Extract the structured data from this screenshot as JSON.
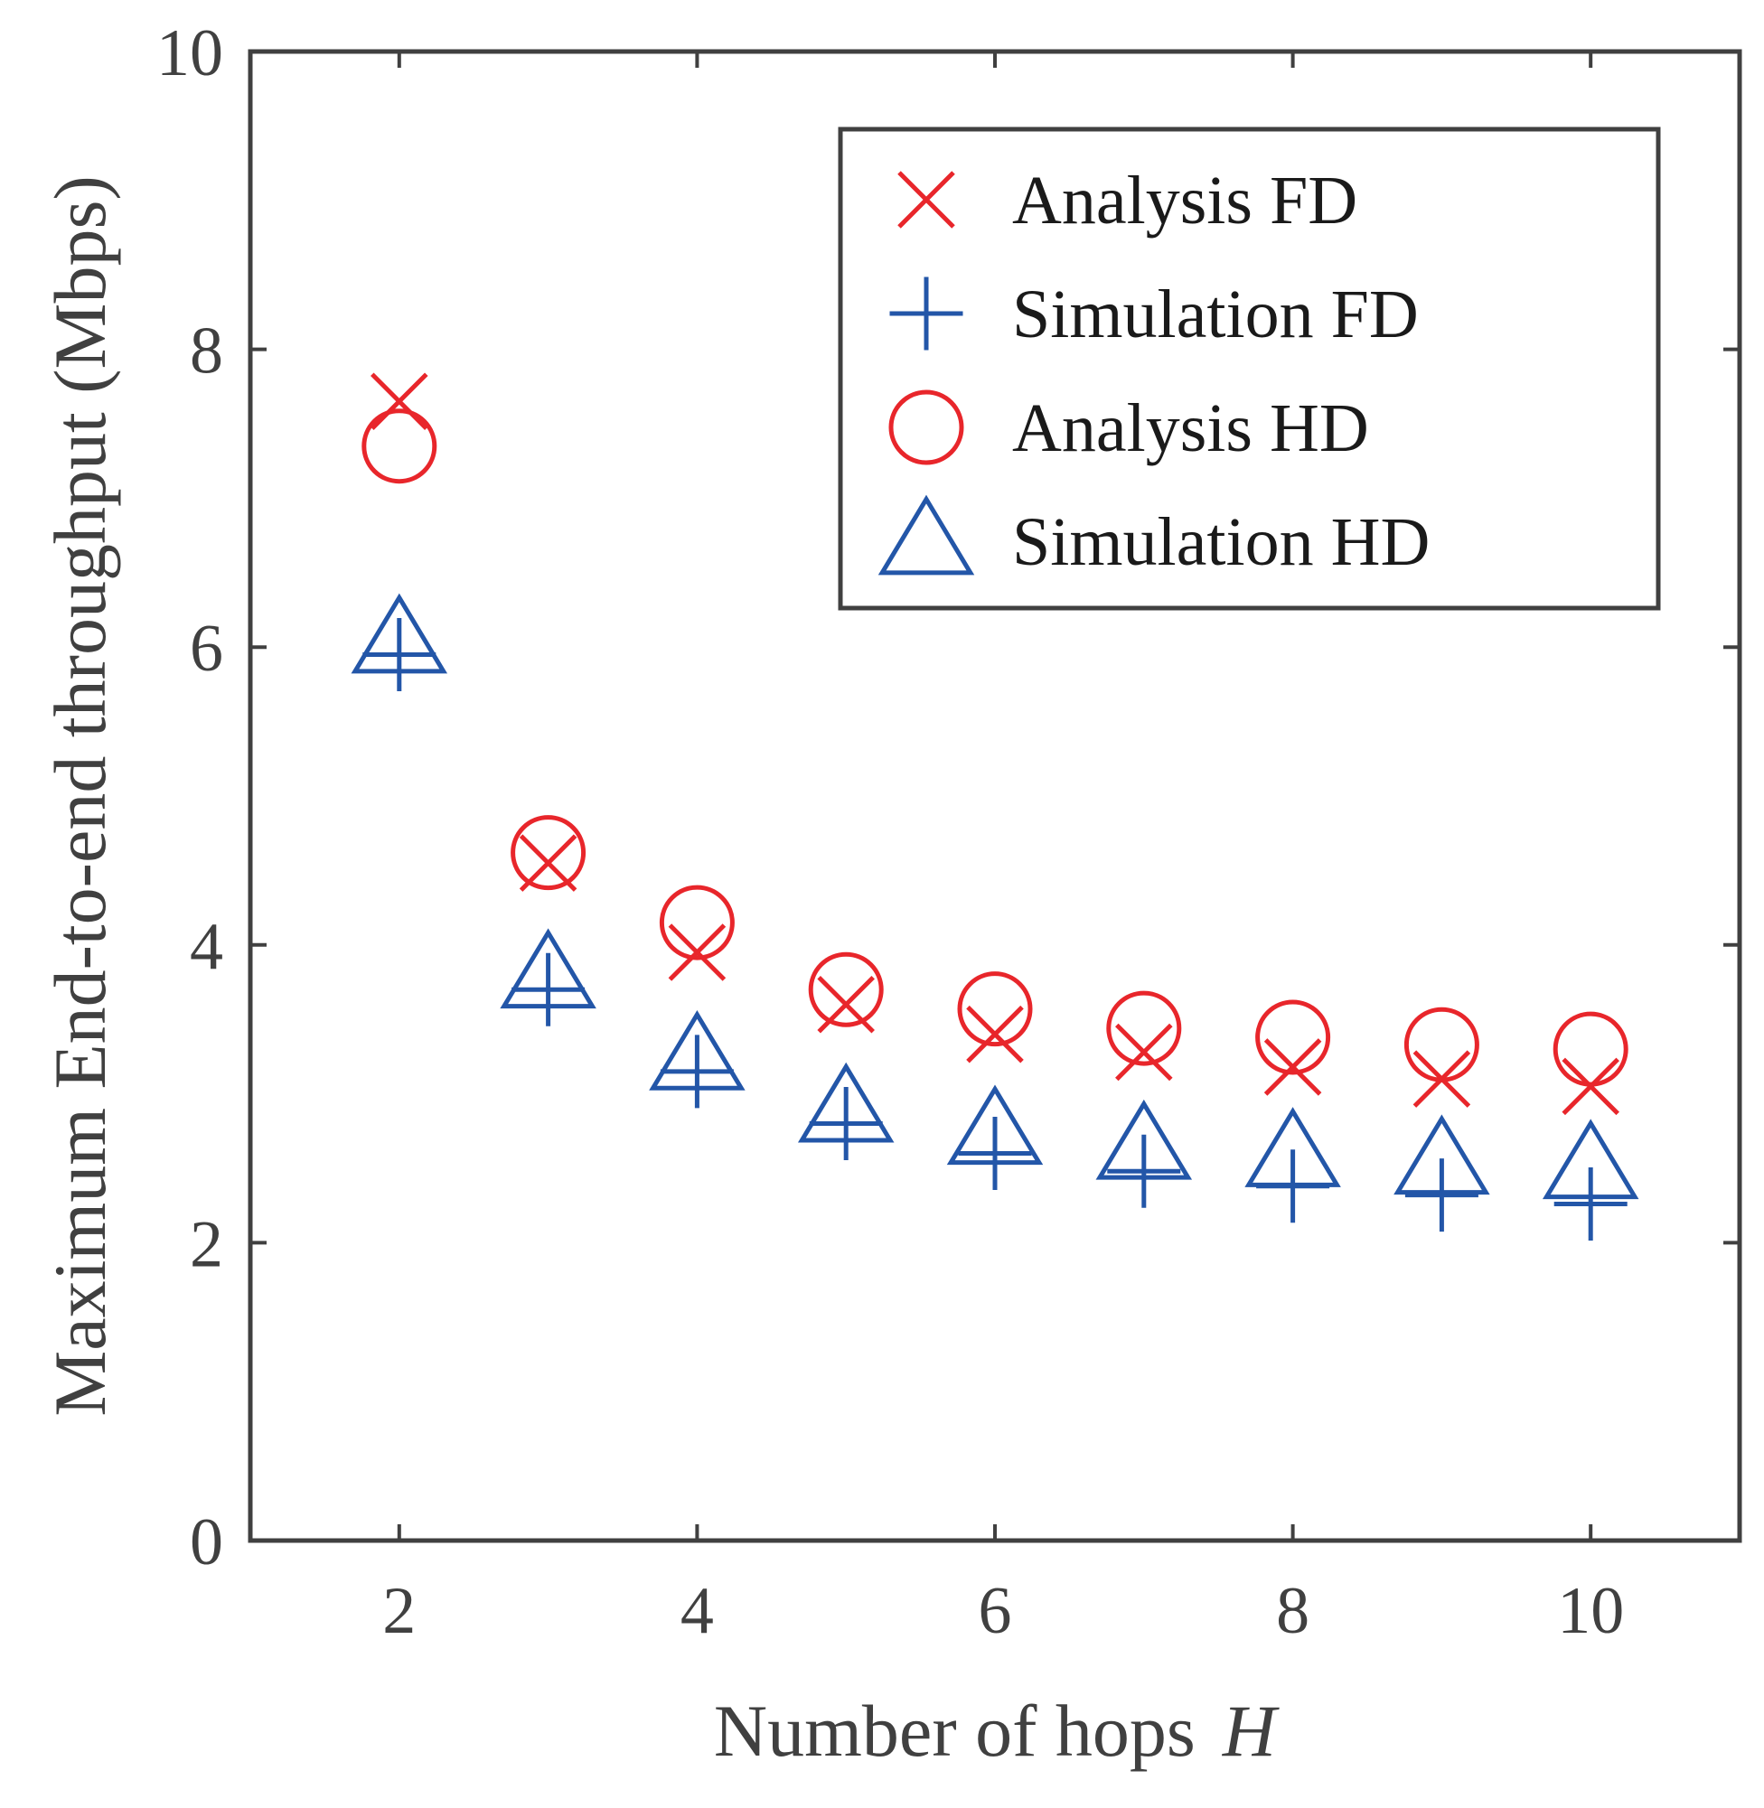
{
  "chart_data": {
    "type": "scatter",
    "title": "",
    "xlabel": "Number of hops",
    "xlabel_symbol": "H",
    "ylabel": "Maximum End-to-end throughput (Mbps)",
    "xlim": [
      1,
      11
    ],
    "ylim": [
      0,
      10
    ],
    "xticks": [
      "2",
      "4",
      "6",
      "8",
      "10"
    ],
    "yticks": [
      "0",
      "2",
      "4",
      "6",
      "8",
      "10"
    ],
    "grid": false,
    "legend_position": "top-right",
    "x": [
      2,
      3,
      4,
      5,
      6,
      7,
      8,
      9,
      10
    ],
    "series": [
      {
        "name": "Analysis FD",
        "marker": "x",
        "color": "#e8262b",
        "values": [
          7.65,
          4.55,
          3.95,
          3.6,
          3.4,
          3.28,
          3.18,
          3.1,
          3.05
        ]
      },
      {
        "name": "Simulation FD",
        "marker": "plus",
        "color": "#2356a8",
        "values": [
          5.95,
          3.7,
          3.15,
          2.8,
          2.6,
          2.48,
          2.38,
          2.32,
          2.26
        ]
      },
      {
        "name": "Analysis HD",
        "marker": "circle",
        "color": "#e8262b",
        "values": [
          7.35,
          4.62,
          4.15,
          3.7,
          3.57,
          3.44,
          3.38,
          3.33,
          3.3
        ]
      },
      {
        "name": "Simulation HD",
        "marker": "triangle",
        "color": "#2356a8",
        "values": [
          6.05,
          3.8,
          3.25,
          2.9,
          2.75,
          2.65,
          2.6,
          2.55,
          2.52
        ]
      }
    ]
  }
}
